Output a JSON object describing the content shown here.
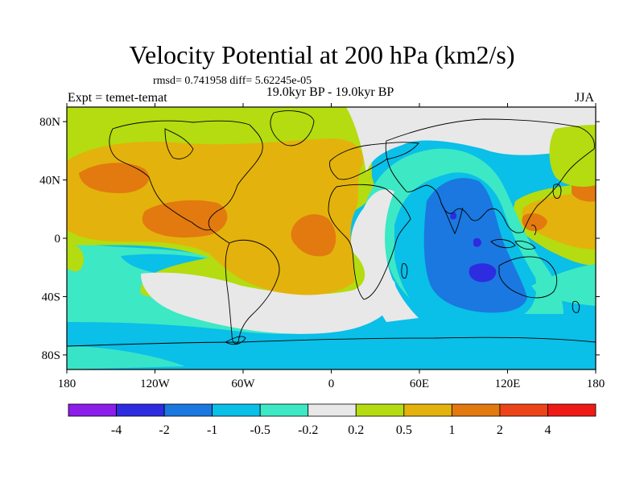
{
  "title": "Velocity Potential at 200 hPa (km2/s)",
  "stats": "rmsd= 0.741958 diff= 5.62245e-05",
  "period": "19.0kyr BP - 19.0kyr BP",
  "experiment": "Expt = temet-temat",
  "season": "JJA",
  "map": {
    "lon_range": [
      -180,
      180
    ],
    "lat_range": [
      -90,
      90
    ],
    "lat_ticks": [
      {
        "value": 80,
        "label": "80N"
      },
      {
        "value": 40,
        "label": "40N"
      },
      {
        "value": 0,
        "label": "0"
      },
      {
        "value": -40,
        "label": "40S"
      },
      {
        "value": -80,
        "label": "80S"
      }
    ],
    "lon_ticks": [
      {
        "value": -180,
        "label": "180"
      },
      {
        "value": -120,
        "label": "120W"
      },
      {
        "value": -60,
        "label": "60W"
      },
      {
        "value": 0,
        "label": "0"
      },
      {
        "value": 60,
        "label": "60E"
      },
      {
        "value": 120,
        "label": "120E"
      },
      {
        "value": 180,
        "label": "180"
      }
    ]
  },
  "colorbar": {
    "colors": [
      "#8b1ee8",
      "#2d2ce0",
      "#1a78e0",
      "#0abfe8",
      "#3de8c4",
      "#e8e8e8",
      "#b4dc10",
      "#e4b20c",
      "#e27a10",
      "#ec4418",
      "#ee1a16"
    ],
    "labels": [
      "-4",
      "-2",
      "-1",
      "-0.5",
      "-0.2",
      "0.2",
      "0.5",
      "1",
      "2",
      "4"
    ]
  }
}
